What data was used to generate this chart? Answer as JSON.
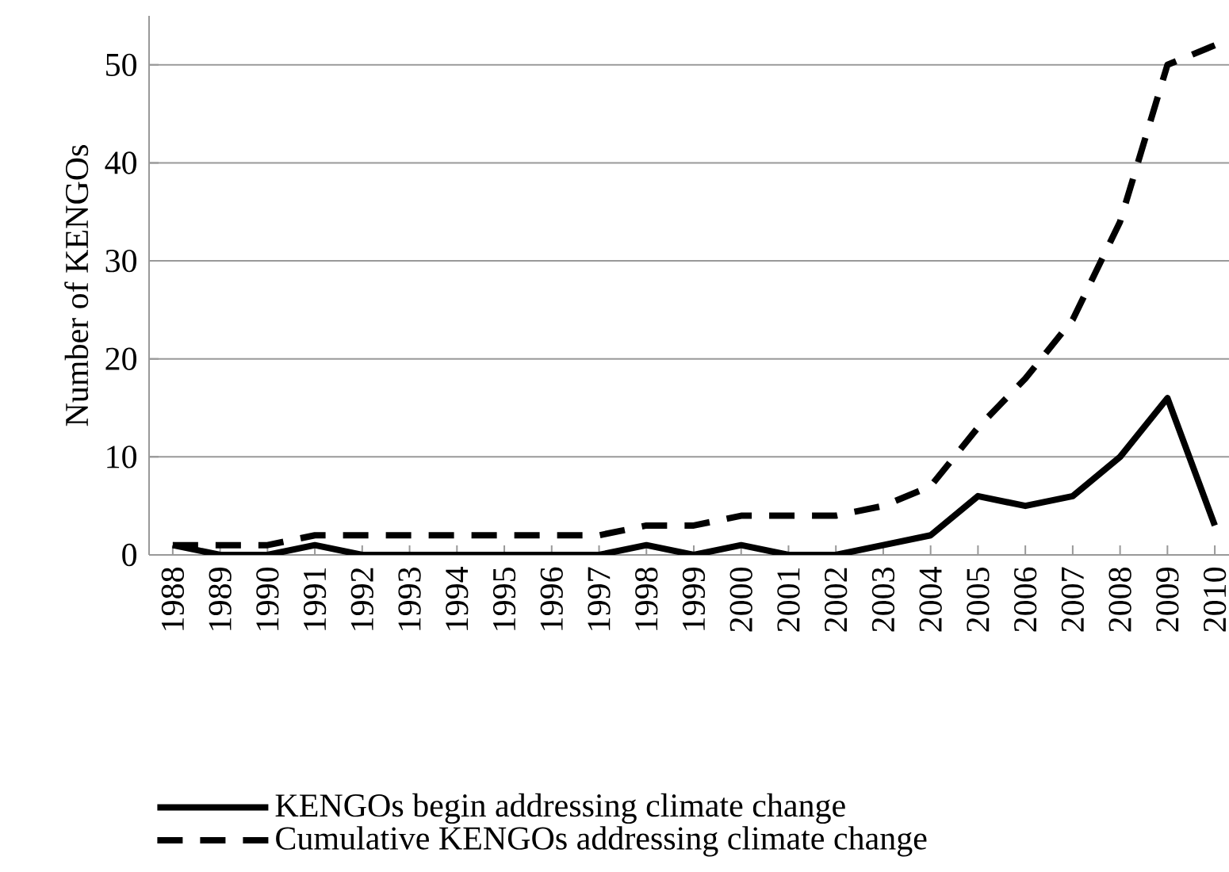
{
  "chart_data": {
    "type": "line",
    "ylabel": "Number of KENGOs",
    "categories": [
      "1988",
      "1989",
      "1990",
      "1991",
      "1992",
      "1993",
      "1994",
      "1995",
      "1996",
      "1997",
      "1998",
      "1999",
      "2000",
      "2001",
      "2002",
      "2003",
      "2004",
      "2005",
      "2006",
      "2007",
      "2008",
      "2009",
      "2010"
    ],
    "series": [
      {
        "name": "KENGOs begin addressing climate change",
        "color": "#000000",
        "line_style": "solid",
        "values": [
          1,
          0,
          0,
          1,
          0,
          0,
          0,
          0,
          0,
          0,
          1,
          0,
          1,
          0,
          0,
          1,
          2,
          6,
          5,
          6,
          10,
          16,
          3
        ]
      },
      {
        "name": "Cumulative KENGOs addressing climate change",
        "color": "#000000",
        "line_style": "dashed",
        "values": [
          1,
          1,
          1,
          2,
          2,
          2,
          2,
          2,
          2,
          2,
          3,
          3,
          4,
          4,
          4,
          5,
          7,
          13,
          18,
          24,
          34,
          50,
          52
        ]
      }
    ],
    "ylim": [
      0,
      55
    ],
    "yticks": [
      0,
      10,
      20,
      30,
      40,
      50
    ],
    "grid": "y",
    "legend": "bottom",
    "marker": "none"
  }
}
